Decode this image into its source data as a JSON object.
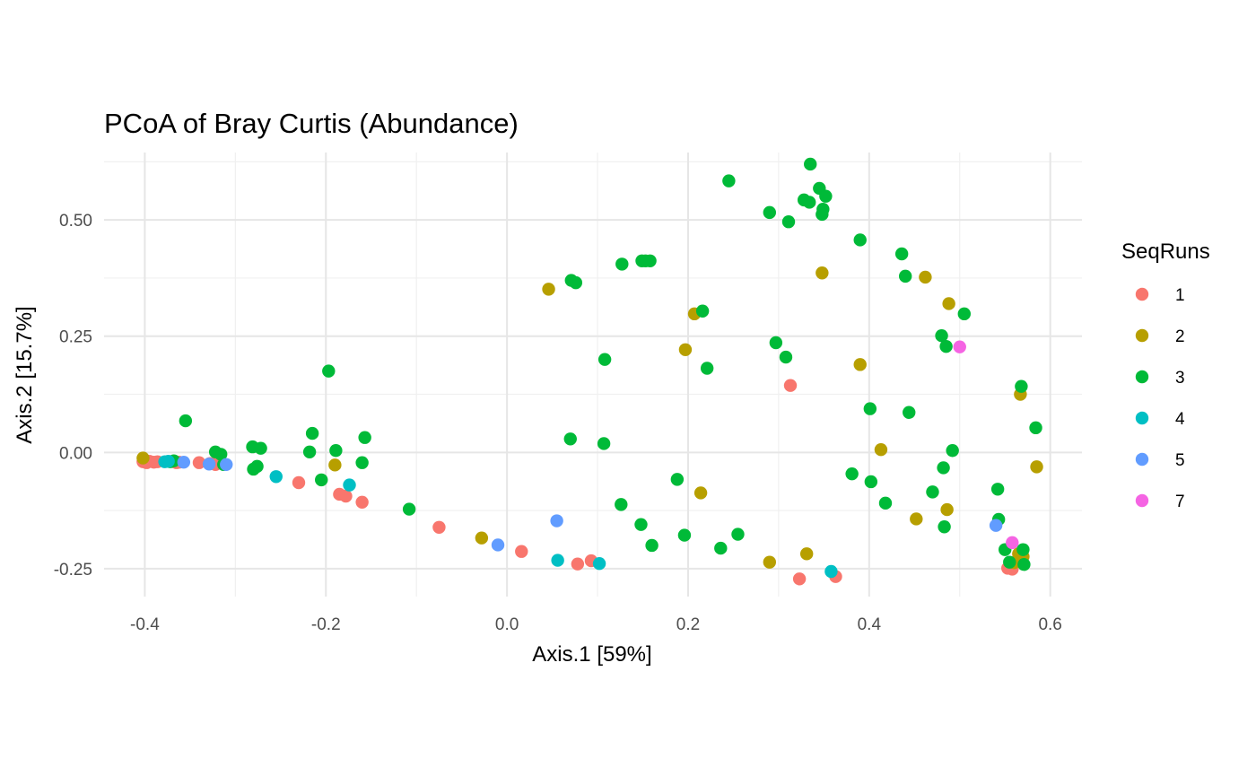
{
  "chart_data": {
    "type": "scatter",
    "title": "PCoA of Bray Curtis (Abundance)",
    "xlabel": "Axis.1   [59%]",
    "ylabel": "Axis.2   [15.7%]",
    "xlim": [
      -0.445,
      0.635
    ],
    "ylim": [
      -0.31,
      0.645
    ],
    "x_ticks": [
      -0.4,
      -0.2,
      0.0,
      0.2,
      0.4,
      0.6
    ],
    "x_tick_labels": [
      "-0.4",
      "-0.2",
      "0.0",
      "0.2",
      "0.4",
      "0.6"
    ],
    "y_ticks": [
      -0.25,
      0.0,
      0.25,
      0.5
    ],
    "y_tick_labels": [
      "-0.25",
      "0.00",
      "0.25",
      "0.50"
    ],
    "x_minor_ticks": [
      -0.3,
      -0.1,
      0.1,
      0.3,
      0.5
    ],
    "y_minor_ticks": [
      -0.125,
      0.125,
      0.375,
      0.625
    ],
    "grid": true,
    "legend": {
      "title": "SeqRuns",
      "position": "right"
    },
    "series": [
      {
        "name": "1",
        "color": "#F8766D",
        "points": [
          [
            -0.402,
            -0.02
          ],
          [
            -0.398,
            -0.022
          ],
          [
            -0.395,
            -0.019
          ],
          [
            -0.39,
            -0.021
          ],
          [
            -0.386,
            -0.02
          ],
          [
            -0.368,
            -0.02
          ],
          [
            -0.365,
            -0.022
          ],
          [
            -0.362,
            -0.021
          ],
          [
            -0.34,
            -0.022
          ],
          [
            -0.328,
            -0.024
          ],
          [
            -0.322,
            -0.026
          ],
          [
            -0.23,
            -0.065
          ],
          [
            -0.185,
            -0.09
          ],
          [
            -0.178,
            -0.094
          ],
          [
            -0.16,
            -0.107
          ],
          [
            -0.075,
            -0.161
          ],
          [
            0.016,
            -0.213
          ],
          [
            0.078,
            -0.24
          ],
          [
            0.093,
            -0.233
          ],
          [
            0.313,
            0.144
          ],
          [
            0.323,
            -0.272
          ],
          [
            0.363,
            -0.267
          ],
          [
            0.553,
            -0.249
          ],
          [
            0.558,
            -0.251
          ]
        ]
      },
      {
        "name": "2",
        "color": "#B79F00",
        "points": [
          [
            -0.402,
            -0.012
          ],
          [
            -0.19,
            -0.027
          ],
          [
            -0.028,
            -0.184
          ],
          [
            0.046,
            0.351
          ],
          [
            0.207,
            0.298
          ],
          [
            0.197,
            0.221
          ],
          [
            0.214,
            -0.087
          ],
          [
            0.29,
            -0.236
          ],
          [
            0.331,
            -0.218
          ],
          [
            0.348,
            0.386
          ],
          [
            0.39,
            0.189
          ],
          [
            0.413,
            0.006
          ],
          [
            0.452,
            -0.143
          ],
          [
            0.462,
            0.377
          ],
          [
            0.488,
            0.32
          ],
          [
            0.486,
            -0.123
          ],
          [
            0.565,
            -0.218
          ],
          [
            0.567,
            0.125
          ],
          [
            0.57,
            -0.224
          ],
          [
            0.585,
            -0.031
          ],
          [
            0.56,
            -0.237
          ]
        ]
      },
      {
        "name": "3",
        "color": "#00BA38",
        "points": [
          [
            -0.372,
            -0.02
          ],
          [
            -0.368,
            -0.018
          ],
          [
            -0.355,
            0.068
          ],
          [
            -0.322,
            0.001
          ],
          [
            -0.316,
            -0.004
          ],
          [
            -0.313,
            -0.026
          ],
          [
            -0.281,
            0.012
          ],
          [
            -0.28,
            -0.036
          ],
          [
            -0.276,
            -0.03
          ],
          [
            -0.272,
            0.009
          ],
          [
            -0.215,
            0.041
          ],
          [
            -0.218,
            0.001
          ],
          [
            -0.205,
            -0.059
          ],
          [
            -0.197,
            0.175
          ],
          [
            -0.189,
            0.004
          ],
          [
            -0.157,
            0.032
          ],
          [
            -0.16,
            -0.022
          ],
          [
            -0.108,
            -0.122
          ],
          [
            0.07,
            0.029
          ],
          [
            0.071,
            0.37
          ],
          [
            0.076,
            0.365
          ],
          [
            0.107,
            0.019
          ],
          [
            0.108,
            0.2
          ],
          [
            0.126,
            -0.112
          ],
          [
            0.127,
            0.405
          ],
          [
            0.148,
            -0.155
          ],
          [
            0.149,
            0.412
          ],
          [
            0.153,
            0.412
          ],
          [
            0.158,
            0.412
          ],
          [
            0.16,
            -0.2
          ],
          [
            0.188,
            -0.058
          ],
          [
            0.196,
            -0.178
          ],
          [
            0.216,
            0.304
          ],
          [
            0.221,
            0.181
          ],
          [
            0.236,
            -0.206
          ],
          [
            0.245,
            0.584
          ],
          [
            0.255,
            -0.176
          ],
          [
            0.29,
            0.516
          ],
          [
            0.297,
            0.236
          ],
          [
            0.308,
            0.205
          ],
          [
            0.311,
            0.496
          ],
          [
            0.328,
            0.543
          ],
          [
            0.334,
            0.538
          ],
          [
            0.335,
            0.62
          ],
          [
            0.345,
            0.568
          ],
          [
            0.348,
            0.512
          ],
          [
            0.349,
            0.523
          ],
          [
            0.352,
            0.551
          ],
          [
            0.381,
            -0.046
          ],
          [
            0.39,
            0.457
          ],
          [
            0.401,
            0.094
          ],
          [
            0.402,
            -0.063
          ],
          [
            0.418,
            -0.109
          ],
          [
            0.436,
            0.427
          ],
          [
            0.44,
            0.379
          ],
          [
            0.444,
            0.086
          ],
          [
            0.47,
            -0.085
          ],
          [
            0.48,
            0.251
          ],
          [
            0.482,
            -0.033
          ],
          [
            0.483,
            -0.16
          ],
          [
            0.485,
            0.228
          ],
          [
            0.492,
            0.004
          ],
          [
            0.505,
            0.298
          ],
          [
            0.542,
            -0.079
          ],
          [
            0.543,
            -0.144
          ],
          [
            0.55,
            -0.209
          ],
          [
            0.555,
            -0.236
          ],
          [
            0.568,
            0.142
          ],
          [
            0.57,
            -0.209
          ],
          [
            0.571,
            -0.241
          ],
          [
            0.584,
            0.053
          ]
        ]
      },
      {
        "name": "4",
        "color": "#00BFC4",
        "points": [
          [
            -0.378,
            -0.02
          ],
          [
            -0.374,
            -0.019
          ],
          [
            -0.255,
            -0.052
          ],
          [
            -0.174,
            -0.07
          ],
          [
            0.056,
            -0.232
          ],
          [
            0.102,
            -0.239
          ],
          [
            0.358,
            -0.256
          ]
        ]
      },
      {
        "name": "5",
        "color": "#619CFF",
        "points": [
          [
            -0.357,
            -0.021
          ],
          [
            -0.329,
            -0.025
          ],
          [
            -0.31,
            -0.026
          ],
          [
            -0.01,
            -0.199
          ],
          [
            0.055,
            -0.147
          ],
          [
            0.54,
            -0.157
          ]
        ]
      },
      {
        "name": "7",
        "color": "#F564E3",
        "points": [
          [
            0.5,
            0.227
          ],
          [
            0.558,
            -0.194
          ]
        ]
      }
    ]
  }
}
